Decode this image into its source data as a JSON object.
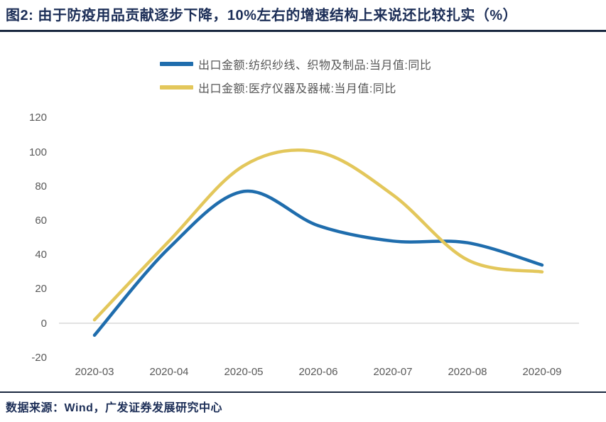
{
  "title": "图2: 由于防疫用品贡献逐步下降，10%左右的增速结构上来说还比较扎实（%）",
  "footer": {
    "source_label": "数据来源：Wind，广发证券发展研究中心"
  },
  "colors": {
    "textile_line": "#1F6DAD",
    "medical_line": "#E3C75B",
    "axis_text": "#595959",
    "zero_line": "#D9D9D9",
    "title_text": "#1C2E57",
    "divider": "#1B2940",
    "background": "#FFFFFF"
  },
  "chart_data": {
    "type": "line",
    "title": "图2: 由于防疫用品贡献逐步下降，10%左右的增速结构上来说还比较扎实（%）",
    "xlabel": "",
    "ylabel": "",
    "categories": [
      "2020-03",
      "2020-04",
      "2020-05",
      "2020-06",
      "2020-07",
      "2020-08",
      "2020-09"
    ],
    "series": [
      {
        "name": "出口金额:纺织纱线、织物及制品:当月值:同比",
        "color": "#1F6DAD",
        "values": [
          -7,
          44,
          77,
          57,
          48,
          47,
          34
        ]
      },
      {
        "name": "出口金额:医疗仪器及器械:当月值:同比",
        "color": "#E3C75B",
        "values": [
          2,
          48,
          92,
          100,
          75,
          37,
          30
        ]
      }
    ],
    "ylim": [
      -20,
      120
    ],
    "yticks": [
      120,
      100,
      80,
      60,
      40,
      20,
      0,
      -20
    ],
    "grid": "zero-baseline-only",
    "legend_position": "top-center",
    "line_style": "smooth"
  }
}
